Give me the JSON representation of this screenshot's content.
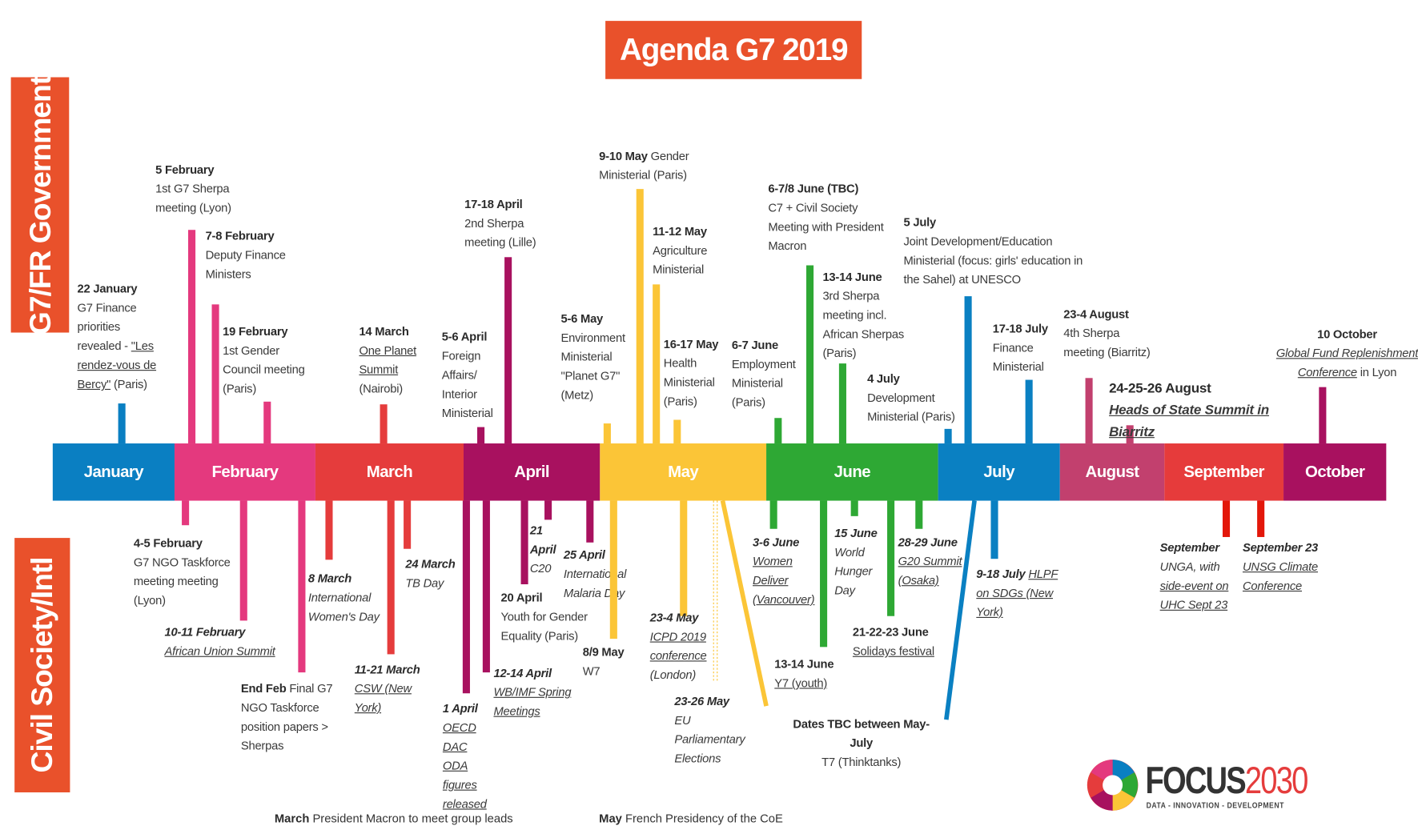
{
  "title": "Agenda G7 2019",
  "side_labels": {
    "government": "G7/FR Government",
    "civil_society": "Civil Society/Intl"
  },
  "months": [
    {
      "name": "January",
      "color": "#0a7fc2"
    },
    {
      "name": "February",
      "color": "#e4397e"
    },
    {
      "name": "March",
      "color": "#e53c3c"
    },
    {
      "name": "April",
      "color": "#a8115f"
    },
    {
      "name": "May",
      "color": "#fbc537"
    },
    {
      "name": "June",
      "color": "#2ea834"
    },
    {
      "name": "July",
      "color": "#0a80c2"
    },
    {
      "name": "August",
      "color": "#c2406e"
    },
    {
      "name": "September",
      "color": "#e63b3b"
    },
    {
      "name": "October",
      "color": "#a8115f"
    }
  ],
  "government_events": [
    {
      "date": "22 January",
      "text": "G7 Finance priorities revealed - ",
      "link": "\"Les rendez-vous de Bercy\"",
      "after": " (Paris)"
    },
    {
      "date": "5 February",
      "text": "1st G7 Sherpa meeting (Lyon)"
    },
    {
      "date": "7-8 February",
      "text": "Deputy Finance Ministers"
    },
    {
      "date": "19 February",
      "text": "1st Gender Council meeting (Paris)"
    },
    {
      "date": "14 March",
      "link": "One Planet Summit",
      "after": " (Nairobi)"
    },
    {
      "date": "5-6 April",
      "text": "Foreign Affairs/ Interior Ministerial"
    },
    {
      "date": "17-18 April",
      "text": "2nd Sherpa meeting (Lille)"
    },
    {
      "date": "5-6 May",
      "text": "Environment Ministerial \"Planet G7\" (Metz)"
    },
    {
      "date": "9-10 May",
      "text": "Gender Ministerial (Paris)",
      "inline": true
    },
    {
      "date": "11-12 May",
      "text": "Agriculture Ministerial"
    },
    {
      "date": "16-17 May",
      "text": "Health Ministerial (Paris)"
    },
    {
      "date": "6-7 June",
      "text": "Employment Ministerial (Paris)"
    },
    {
      "date": "6-7/8 June (TBC)",
      "text": "C7 + Civil Society Meeting with President Macron"
    },
    {
      "date": "13-14 June",
      "text": "3rd Sherpa meeting incl. African Sherpas (Paris)"
    },
    {
      "date": "4 July",
      "text": "Development Ministerial (Paris)"
    },
    {
      "date": "5 July",
      "text": "Joint Development/Education Ministerial (focus: girls' education in the Sahel) at UNESCO"
    },
    {
      "date": "17-18 July",
      "text": "Finance Ministerial"
    },
    {
      "date": "23-4 August",
      "text": "4th Sherpa meeting (Biarritz)"
    },
    {
      "date": "24-25-26 August",
      "link": "Heads of State Summit in Biarritz",
      "big": true
    },
    {
      "date": "10 October",
      "link": "Global Fund Replenishment Conference",
      "after": " in Lyon",
      "link_italic": true,
      "center": true
    }
  ],
  "civil_society_events": [
    {
      "date": "4-5 February",
      "text": "G7 NGO Taskforce meeting meeting (Lyon)"
    },
    {
      "date": "10-11 February",
      "link": "African Union Summit",
      "italic": true
    },
    {
      "date": "End Feb",
      "text": "Final G7 NGO Taskforce position papers > Sherpas",
      "inline": true
    },
    {
      "date": "8 March",
      "text": "International Women's Day",
      "italic": true
    },
    {
      "date": "11-21 March",
      "link": "CSW (New York)",
      "italic": true
    },
    {
      "date": "24 March",
      "text": "TB Day",
      "italic": true
    },
    {
      "date": "1 April",
      "link": "OECD DAC ODA figures released",
      "italic": true
    },
    {
      "date": "12-14 April",
      "link": "WB/IMF Spring Meetings",
      "italic": true
    },
    {
      "date": "20 April",
      "text": "Youth for Gender Equality (Paris)"
    },
    {
      "date": "21 April",
      "text": "C20",
      "italic": true
    },
    {
      "date": "25 April",
      "text": "International Malaria Day",
      "italic": true
    },
    {
      "date": "8/9 May",
      "text": "W7"
    },
    {
      "date": "23-4 May",
      "link": "ICPD 2019 conference",
      "after": " (London)",
      "italic": true
    },
    {
      "date": "23-26 May",
      "text": "EU Parliamentary Elections",
      "italic": true
    },
    {
      "date": "3-6 June",
      "link": "Women Deliver (Vancouver)",
      "italic": true
    },
    {
      "date": "13-14 June",
      "link": "Y7 (youth)"
    },
    {
      "date": "15 June",
      "text": "World Hunger Day",
      "italic": true
    },
    {
      "date": "21-22-23 June",
      "link": "Solidays festival"
    },
    {
      "date": "28-29 June",
      "link": "G20 Summit (Osaka)",
      "italic": true
    },
    {
      "date": "Dates TBC between May-July",
      "text": "T7 (Thinktanks)",
      "center": true
    },
    {
      "date": "9-18 July",
      "link": "HLPF on SDGs (New York)",
      "inline": true,
      "italic": true
    },
    {
      "date": "September",
      "text": "UNGA, with ",
      "link": "side-event on UHC Sept 23",
      "italic": true
    },
    {
      "date": "September 23",
      "link": "UNSG Climate Conference",
      "italic": true
    }
  ],
  "footnotes": [
    {
      "label": "March",
      "text": " President Macron to meet group leads"
    },
    {
      "label": "May",
      "text": " French Presidency of the CoE"
    }
  ],
  "logo": {
    "word": "FOCUS",
    "number": "2030",
    "tagline": "DATA - INNOVATION - DEVELOPMENT"
  }
}
